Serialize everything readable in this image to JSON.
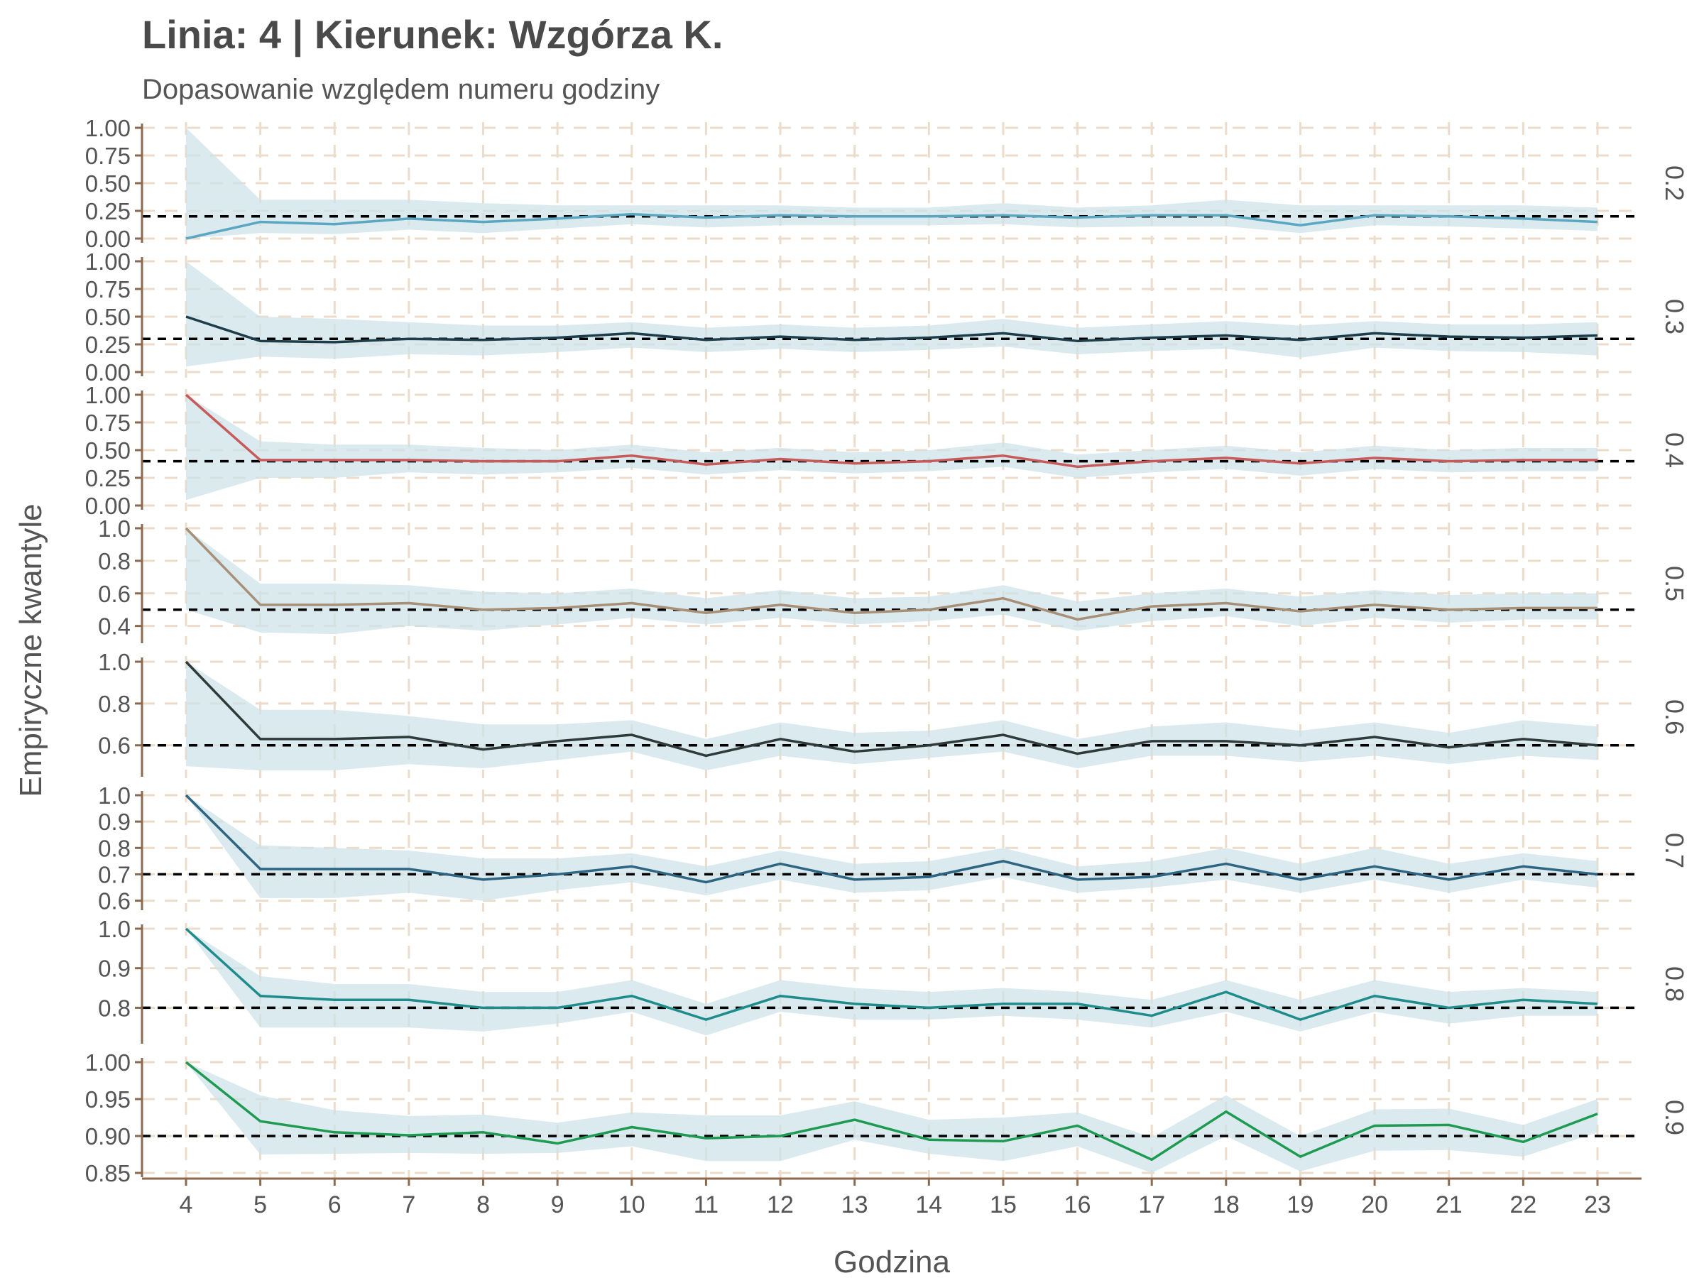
{
  "title": "Linia: 4 | Kierunek: Wzgórza K.",
  "subtitle": "Dopasowanie względem numeru godziny",
  "chart_data": {
    "type": "line",
    "xlabel": "Godzina",
    "ylabel": "Empiryczne kwantyle",
    "x": [
      4,
      5,
      6,
      7,
      8,
      9,
      10,
      11,
      12,
      13,
      14,
      15,
      16,
      17,
      18,
      19,
      20,
      21,
      22,
      23
    ],
    "grid": true,
    "colors": {
      "ribbon": "#cde3e8",
      "axis": "#8b6a4f",
      "grid": "#ecdccb",
      "reference": "#000000",
      "text": "#555555"
    },
    "panels": [
      {
        "label": "0.2",
        "reference": 0.2,
        "color": "#5ba7c2",
        "ylim": [
          0,
          1.0
        ],
        "ticks": [
          0,
          0.25,
          0.5,
          0.75,
          1.0
        ],
        "tick_labels": [
          "0.00",
          "0.25",
          "0.50",
          "0.75",
          "1.00"
        ],
        "values": [
          0.0,
          0.15,
          0.13,
          0.18,
          0.15,
          0.18,
          0.22,
          0.19,
          0.21,
          0.2,
          0.2,
          0.21,
          0.19,
          0.21,
          0.21,
          0.12,
          0.21,
          0.2,
          0.18,
          0.15
        ],
        "lower": [
          0.0,
          0.05,
          0.04,
          0.08,
          0.05,
          0.09,
          0.13,
          0.1,
          0.12,
          0.12,
          0.12,
          0.13,
          0.1,
          0.11,
          0.11,
          0.05,
          0.12,
          0.11,
          0.09,
          0.07
        ],
        "upper": [
          1.0,
          0.35,
          0.35,
          0.35,
          0.32,
          0.3,
          0.3,
          0.3,
          0.3,
          0.28,
          0.28,
          0.32,
          0.28,
          0.3,
          0.35,
          0.3,
          0.3,
          0.3,
          0.3,
          0.28
        ]
      },
      {
        "label": "0.3",
        "reference": 0.3,
        "color": "#1e3d4a",
        "ylim": [
          0,
          1.0
        ],
        "ticks": [
          0,
          0.25,
          0.5,
          0.75,
          1.0
        ],
        "tick_labels": [
          "0.00",
          "0.25",
          "0.50",
          "0.75",
          "1.00"
        ],
        "values": [
          0.5,
          0.28,
          0.27,
          0.3,
          0.29,
          0.31,
          0.35,
          0.29,
          0.32,
          0.29,
          0.31,
          0.35,
          0.28,
          0.31,
          0.33,
          0.29,
          0.35,
          0.32,
          0.31,
          0.33
        ],
        "lower": [
          0.05,
          0.14,
          0.12,
          0.16,
          0.15,
          0.18,
          0.22,
          0.18,
          0.21,
          0.18,
          0.2,
          0.23,
          0.16,
          0.19,
          0.21,
          0.13,
          0.22,
          0.19,
          0.18,
          0.15
        ],
        "upper": [
          1.0,
          0.5,
          0.48,
          0.45,
          0.42,
          0.42,
          0.45,
          0.4,
          0.43,
          0.4,
          0.42,
          0.48,
          0.4,
          0.43,
          0.46,
          0.42,
          0.46,
          0.43,
          0.43,
          0.45
        ]
      },
      {
        "label": "0.4",
        "reference": 0.4,
        "color": "#c75b5b",
        "ylim": [
          0,
          1.0
        ],
        "ticks": [
          0,
          0.25,
          0.5,
          0.75,
          1.0
        ],
        "tick_labels": [
          "0.00",
          "0.25",
          "0.50",
          "0.75",
          "1.00"
        ],
        "values": [
          1.0,
          0.41,
          0.41,
          0.41,
          0.4,
          0.4,
          0.45,
          0.37,
          0.42,
          0.38,
          0.4,
          0.45,
          0.35,
          0.4,
          0.43,
          0.38,
          0.43,
          0.4,
          0.41,
          0.41
        ],
        "lower": [
          0.05,
          0.25,
          0.25,
          0.3,
          0.28,
          0.3,
          0.34,
          0.28,
          0.32,
          0.29,
          0.31,
          0.35,
          0.25,
          0.3,
          0.33,
          0.27,
          0.33,
          0.3,
          0.31,
          0.31
        ],
        "upper": [
          1.0,
          0.58,
          0.55,
          0.55,
          0.52,
          0.5,
          0.55,
          0.48,
          0.52,
          0.48,
          0.5,
          0.57,
          0.46,
          0.5,
          0.54,
          0.48,
          0.54,
          0.5,
          0.52,
          0.52
        ]
      },
      {
        "label": "0.5",
        "reference": 0.5,
        "color": "#a89078",
        "ylim": [
          0.32,
          1.0
        ],
        "ticks": [
          0.4,
          0.6,
          0.8,
          1.0
        ],
        "tick_labels": [
          "0.4",
          "0.6",
          "0.8",
          "1.0"
        ],
        "values": [
          1.0,
          0.53,
          0.53,
          0.54,
          0.5,
          0.51,
          0.54,
          0.48,
          0.53,
          0.48,
          0.5,
          0.57,
          0.44,
          0.52,
          0.54,
          0.49,
          0.53,
          0.5,
          0.51,
          0.51
        ],
        "lower": [
          0.5,
          0.36,
          0.35,
          0.4,
          0.37,
          0.41,
          0.45,
          0.41,
          0.45,
          0.41,
          0.43,
          0.47,
          0.37,
          0.43,
          0.46,
          0.4,
          0.45,
          0.42,
          0.44,
          0.44
        ],
        "upper": [
          1.0,
          0.66,
          0.66,
          0.65,
          0.61,
          0.6,
          0.63,
          0.57,
          0.62,
          0.57,
          0.58,
          0.65,
          0.55,
          0.6,
          0.63,
          0.58,
          0.62,
          0.59,
          0.6,
          0.6
        ]
      },
      {
        "label": "0.6",
        "reference": 0.6,
        "color": "#2f3a3a",
        "ylim": [
          0.47,
          1.0
        ],
        "ticks": [
          0.6,
          0.8,
          1.0
        ],
        "tick_labels": [
          "0.6",
          "0.8",
          "1.0"
        ],
        "values": [
          1.0,
          0.63,
          0.63,
          0.64,
          0.58,
          0.62,
          0.65,
          0.55,
          0.63,
          0.57,
          0.6,
          0.65,
          0.56,
          0.62,
          0.62,
          0.6,
          0.64,
          0.59,
          0.63,
          0.6
        ],
        "lower": [
          0.5,
          0.48,
          0.48,
          0.51,
          0.49,
          0.53,
          0.57,
          0.48,
          0.55,
          0.51,
          0.54,
          0.57,
          0.49,
          0.55,
          0.55,
          0.52,
          0.55,
          0.51,
          0.55,
          0.53
        ],
        "upper": [
          1.0,
          0.77,
          0.77,
          0.74,
          0.7,
          0.7,
          0.72,
          0.63,
          0.71,
          0.66,
          0.67,
          0.72,
          0.63,
          0.69,
          0.71,
          0.67,
          0.71,
          0.66,
          0.72,
          0.69
        ]
      },
      {
        "label": "0.7",
        "reference": 0.7,
        "color": "#2d6582",
        "ylim": [
          0.58,
          1.0
        ],
        "ticks": [
          0.6,
          0.7,
          0.8,
          0.9,
          1.0
        ],
        "tick_labels": [
          "0.6",
          "0.7",
          "0.8",
          "0.9",
          "1.0"
        ],
        "values": [
          1.0,
          0.72,
          0.72,
          0.72,
          0.68,
          0.7,
          0.73,
          0.67,
          0.74,
          0.68,
          0.69,
          0.75,
          0.68,
          0.69,
          0.74,
          0.68,
          0.73,
          0.68,
          0.73,
          0.7
        ],
        "lower": [
          1.0,
          0.61,
          0.61,
          0.63,
          0.6,
          0.64,
          0.67,
          0.62,
          0.68,
          0.63,
          0.64,
          0.69,
          0.63,
          0.65,
          0.68,
          0.63,
          0.68,
          0.63,
          0.68,
          0.65
        ],
        "upper": [
          1.0,
          0.81,
          0.8,
          0.79,
          0.76,
          0.76,
          0.78,
          0.73,
          0.79,
          0.74,
          0.75,
          0.8,
          0.73,
          0.75,
          0.8,
          0.74,
          0.8,
          0.74,
          0.78,
          0.75
        ]
      },
      {
        "label": "0.8",
        "reference": 0.8,
        "color": "#1f8c8c",
        "ylim": [
          0.72,
          1.0
        ],
        "ticks": [
          0.8,
          0.9,
          1.0
        ],
        "tick_labels": [
          "0.8",
          "0.9",
          "1.0"
        ],
        "values": [
          1.0,
          0.83,
          0.82,
          0.82,
          0.8,
          0.8,
          0.83,
          0.77,
          0.83,
          0.81,
          0.8,
          0.81,
          0.81,
          0.78,
          0.84,
          0.77,
          0.83,
          0.8,
          0.82,
          0.81
        ],
        "lower": [
          1.0,
          0.75,
          0.75,
          0.75,
          0.74,
          0.76,
          0.79,
          0.73,
          0.79,
          0.77,
          0.77,
          0.78,
          0.77,
          0.75,
          0.79,
          0.74,
          0.79,
          0.76,
          0.78,
          0.78
        ],
        "upper": [
          1.0,
          0.88,
          0.86,
          0.86,
          0.84,
          0.84,
          0.87,
          0.81,
          0.87,
          0.85,
          0.84,
          0.85,
          0.84,
          0.82,
          0.87,
          0.82,
          0.87,
          0.84,
          0.85,
          0.84
        ]
      },
      {
        "label": "0.9",
        "reference": 0.9,
        "color": "#1f9a52",
        "ylim": [
          0.85,
          1.0
        ],
        "ticks": [
          0.85,
          0.9,
          0.95,
          1.0
        ],
        "tick_labels": [
          "0.85",
          "0.90",
          "0.95",
          "1.00"
        ],
        "values": [
          1.0,
          0.92,
          0.905,
          0.901,
          0.905,
          0.89,
          0.912,
          0.897,
          0.9,
          0.922,
          0.895,
          0.893,
          0.914,
          0.868,
          0.933,
          0.872,
          0.914,
          0.915,
          0.892,
          0.93
        ],
        "lower": [
          1.0,
          0.875,
          0.876,
          0.877,
          0.876,
          0.877,
          0.886,
          0.866,
          0.866,
          0.895,
          0.876,
          0.866,
          0.886,
          0.85,
          0.9,
          0.852,
          0.88,
          0.881,
          0.872,
          0.905
        ],
        "upper": [
          1.0,
          0.955,
          0.935,
          0.927,
          0.929,
          0.918,
          0.932,
          0.928,
          0.928,
          0.947,
          0.922,
          0.925,
          0.932,
          0.898,
          0.955,
          0.9,
          0.936,
          0.937,
          0.915,
          0.95
        ]
      }
    ]
  }
}
